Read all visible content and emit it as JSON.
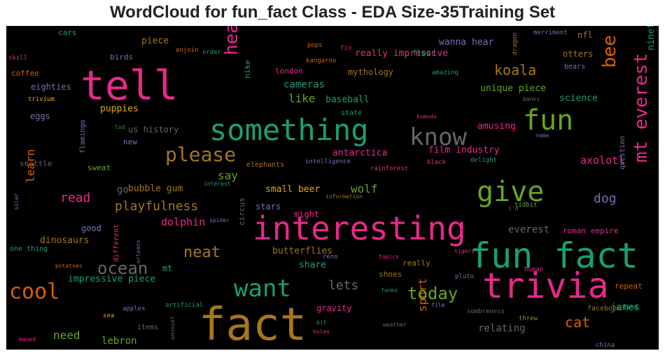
{
  "title": "WordCloud for fun_fact Class - EDA Size-35Training Set",
  "palette": {
    "pink": "#e7298a",
    "green": "#1b9e77",
    "orange": "#d95f02",
    "olive": "#66a61e",
    "gold": "#a6761d",
    "purple": "#7570b3",
    "gray": "#666666",
    "yellow": "#e6ab02",
    "background": "#000000"
  },
  "chart_data": {
    "type": "wordcloud",
    "words": [
      {
        "text": "fact",
        "color": "gold"
      },
      {
        "text": "fun fact",
        "color": "green"
      },
      {
        "text": "interesting",
        "color": "pink"
      },
      {
        "text": "trivia",
        "color": "pink"
      },
      {
        "text": "tell",
        "color": "pink"
      },
      {
        "text": "something",
        "color": "green"
      },
      {
        "text": "give",
        "color": "olive"
      },
      {
        "text": "fun",
        "color": "olive"
      },
      {
        "text": "know",
        "color": "gray"
      },
      {
        "text": "want",
        "color": "green"
      },
      {
        "text": "cool",
        "color": "orange"
      },
      {
        "text": "please",
        "color": "gold"
      },
      {
        "text": "mt everest",
        "color": "pink"
      },
      {
        "text": "ocean",
        "color": "gray"
      },
      {
        "text": "today",
        "color": "olive"
      },
      {
        "text": "hear",
        "color": "pink"
      },
      {
        "text": "bee",
        "color": "orange"
      },
      {
        "text": "koala",
        "color": "gold"
      },
      {
        "text": "neat",
        "color": "gold"
      },
      {
        "text": "playfulness",
        "color": "gold"
      },
      {
        "text": "read",
        "color": "pink"
      },
      {
        "text": "cat",
        "color": "orange"
      },
      {
        "text": "dog",
        "color": "purple"
      },
      {
        "text": "lets",
        "color": "gray"
      },
      {
        "text": "sport",
        "color": "orange"
      },
      {
        "text": "learn",
        "color": "orange"
      },
      {
        "text": "like",
        "color": "olive"
      },
      {
        "text": "say",
        "color": "olive"
      },
      {
        "text": "wolf",
        "color": "olive"
      },
      {
        "text": "axolotl",
        "color": "pink"
      },
      {
        "text": "dolphin",
        "color": "pink"
      },
      {
        "text": "everest",
        "color": "gray"
      },
      {
        "text": "james",
        "color": "green"
      },
      {
        "text": "need",
        "color": "olive"
      },
      {
        "text": "lebron",
        "color": "olive"
      },
      {
        "text": "relating",
        "color": "gray"
      },
      {
        "text": "cameras",
        "color": "green"
      },
      {
        "text": "nineteen",
        "color": "green"
      },
      {
        "text": "go",
        "color": "gray"
      },
      {
        "text": "bubble gum",
        "color": "gold"
      },
      {
        "text": "dinosaurs",
        "color": "gold"
      },
      {
        "text": "really impressive",
        "color": "pink"
      },
      {
        "text": "unique piece",
        "color": "olive"
      },
      {
        "text": "antarctica",
        "color": "pink"
      },
      {
        "text": "film industry",
        "color": "pink"
      },
      {
        "text": "impressive piece",
        "color": "green"
      },
      {
        "text": "amusing",
        "color": "pink"
      },
      {
        "text": "baseball",
        "color": "green"
      },
      {
        "text": "science",
        "color": "green"
      },
      {
        "text": "butterflies",
        "color": "gold"
      },
      {
        "text": "small beer",
        "color": "yellow"
      },
      {
        "text": "eighties",
        "color": "purple"
      },
      {
        "text": "piece",
        "color": "gold"
      },
      {
        "text": "wanna hear",
        "color": "purple"
      },
      {
        "text": "puppies",
        "color": "yellow"
      },
      {
        "text": "mythology",
        "color": "gold"
      },
      {
        "text": "us history",
        "color": "gray"
      },
      {
        "text": "gravity",
        "color": "pink"
      },
      {
        "text": "share",
        "color": "green"
      },
      {
        "text": "good",
        "color": "purple"
      },
      {
        "text": "might",
        "color": "pink"
      },
      {
        "text": "stars",
        "color": "purple"
      },
      {
        "text": "mt",
        "color": "green"
      },
      {
        "text": "nfl",
        "color": "gold"
      },
      {
        "text": "otters",
        "color": "gold"
      },
      {
        "text": "nike",
        "color": "green"
      },
      {
        "text": "floor",
        "color": "green"
      },
      {
        "text": "london",
        "color": "pink"
      },
      {
        "text": "birds",
        "color": "purple"
      },
      {
        "text": "cars",
        "color": "green"
      },
      {
        "text": "coffee",
        "color": "orange"
      },
      {
        "text": "eggs",
        "color": "purple"
      },
      {
        "text": "new",
        "color": "purple"
      },
      {
        "text": "sweat",
        "color": "olive"
      },
      {
        "text": "seattle",
        "color": "gray"
      },
      {
        "text": "elephants",
        "color": "gold"
      },
      {
        "text": "shoes",
        "color": "gold"
      },
      {
        "text": "really",
        "color": "gold"
      },
      {
        "text": "facebook",
        "color": "gold"
      },
      {
        "text": "roman empire",
        "color": "pink"
      },
      {
        "text": "one thing",
        "color": "green"
      },
      {
        "text": "state",
        "color": "green"
      },
      {
        "text": "repeat",
        "color": "orange"
      },
      {
        "text": "bears",
        "color": "purple"
      },
      {
        "text": "flamingo",
        "color": "purple"
      },
      {
        "text": "circus",
        "color": "gray"
      },
      {
        "text": "different",
        "color": "pink"
      },
      {
        "text": "items",
        "color": "gray"
      },
      {
        "text": "question",
        "color": "purple"
      },
      {
        "text": "rainforest",
        "color": "pink"
      },
      {
        "text": "intelligence",
        "color": "purple"
      },
      {
        "text": "enjoin",
        "color": "orange"
      },
      {
        "text": "order",
        "color": "green"
      },
      {
        "text": "pops",
        "color": "orange"
      },
      {
        "text": "fin",
        "color": "pink"
      },
      {
        "text": "kangaroo",
        "color": "orange"
      },
      {
        "text": "dragon",
        "color": "gold"
      },
      {
        "text": "merriment",
        "color": "purple"
      },
      {
        "text": "skill",
        "color": "pink"
      },
      {
        "text": "trivium",
        "color": "yellow"
      },
      {
        "text": "amazing",
        "color": "green"
      },
      {
        "text": "banks",
        "color": "gray"
      },
      {
        "text": "komodo",
        "color": "pink"
      },
      {
        "text": "lsd",
        "color": "green"
      },
      {
        "text": "name",
        "color": "purple"
      },
      {
        "text": "black",
        "color": "pink"
      },
      {
        "text": "delight",
        "color": "green"
      },
      {
        "text": "interest",
        "color": "green"
      },
      {
        "text": "information",
        "color": "gold"
      },
      {
        "text": "spider",
        "color": "purple"
      },
      {
        "text": "orleans",
        "color": "purple"
      },
      {
        "text": "reno",
        "color": "purple"
      },
      {
        "text": "tidbit",
        "color": "olive"
      },
      {
        "text": "i'd",
        "color": "pink"
      },
      {
        "text": "solar",
        "color": "purple"
      },
      {
        "text": "potatoes",
        "color": "orange"
      },
      {
        "text": "topics",
        "color": "pink"
      },
      {
        "text": "tigers",
        "color": "pink"
      },
      {
        "text": "pluto",
        "color": "purple"
      },
      {
        "text": "human",
        "color": "pink"
      },
      {
        "text": "funko",
        "color": "green"
      },
      {
        "text": "apples",
        "color": "purple"
      },
      {
        "text": "sea",
        "color": "yellow"
      },
      {
        "text": "artificial",
        "color": "green"
      },
      {
        "text": "film",
        "color": "purple"
      },
      {
        "text": "sombreness",
        "color": "gray"
      },
      {
        "text": "threw",
        "color": "olive"
      },
      {
        "text": "unusual",
        "color": "gray"
      },
      {
        "text": "bit",
        "color": "green"
      },
      {
        "text": "holes",
        "color": "pink"
      },
      {
        "text": "weather",
        "color": "gray"
      },
      {
        "text": "find",
        "color": "green"
      },
      {
        "text": "china",
        "color": "purple"
      },
      {
        "text": "maned",
        "color": "pink"
      }
    ]
  }
}
